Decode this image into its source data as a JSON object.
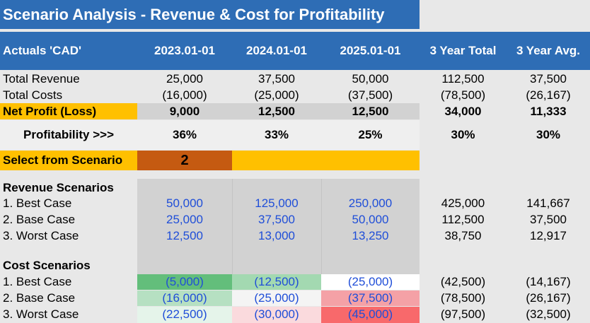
{
  "title": "Scenario Analysis - Revenue & Cost for Profitability",
  "header": {
    "label": "Actuals 'CAD'",
    "columns": [
      "2023.01-01",
      "2024.01-01",
      "2025.01-01",
      "3 Year Total",
      "3 Year Avg."
    ]
  },
  "actuals": {
    "total_revenue": {
      "label": "Total Revenue",
      "values": [
        "25,000",
        "37,500",
        "50,000",
        "112,500",
        "37,500"
      ]
    },
    "total_costs": {
      "label": "Total Costs",
      "values": [
        "(16,000)",
        "(25,000)",
        "(37,500)",
        "(78,500)",
        "(26,167)"
      ]
    },
    "net_profit": {
      "label": "Net Profit (Loss)",
      "values": [
        "9,000",
        "12,500",
        "12,500",
        "34,000",
        "11,333"
      ]
    },
    "profitability": {
      "label": "Profitability >>>",
      "values": [
        "36%",
        "33%",
        "25%",
        "30%",
        "30%"
      ]
    }
  },
  "select": {
    "label": "Select from Scenario",
    "value": "2"
  },
  "revenue_scenarios": {
    "heading": "Revenue Scenarios",
    "rows": [
      {
        "label": "1. Best Case",
        "values": [
          "50,000",
          "125,000",
          "250,000",
          "425,000",
          "141,667"
        ]
      },
      {
        "label": "2. Base Case",
        "values": [
          "25,000",
          "37,500",
          "50,000",
          "112,500",
          "37,500"
        ]
      },
      {
        "label": "3. Worst Case",
        "values": [
          "12,500",
          "13,000",
          "13,250",
          "38,750",
          "12,917"
        ]
      }
    ]
  },
  "cost_scenarios": {
    "heading": "Cost Scenarios",
    "rows": [
      {
        "label": "1. Best Case",
        "values": [
          "(5,000)",
          "(12,500)",
          "(25,000)",
          "(42,500)",
          "(14,167)"
        ],
        "fills": [
          "#63be7b",
          "#a3d9b1",
          "#ffffff"
        ]
      },
      {
        "label": "2. Base Case",
        "values": [
          "(16,000)",
          "(25,000)",
          "(37,500)",
          "(78,500)",
          "(26,167)"
        ],
        "fills": [
          "#b6e0c2",
          "#f4f4f4",
          "#f4a1a6"
        ]
      },
      {
        "label": "3. Worst Case",
        "values": [
          "(22,500)",
          "(30,000)",
          "(45,000)",
          "(97,500)",
          "(32,500)"
        ],
        "fills": [
          "#e5f4ea",
          "#fadadd",
          "#f8696b"
        ]
      }
    ]
  },
  "colors": {
    "header_blue": "#2e6db5",
    "highlight_yellow": "#ffc000",
    "select_orange": "#c55a11",
    "input_blue": "#1f4ed8"
  }
}
